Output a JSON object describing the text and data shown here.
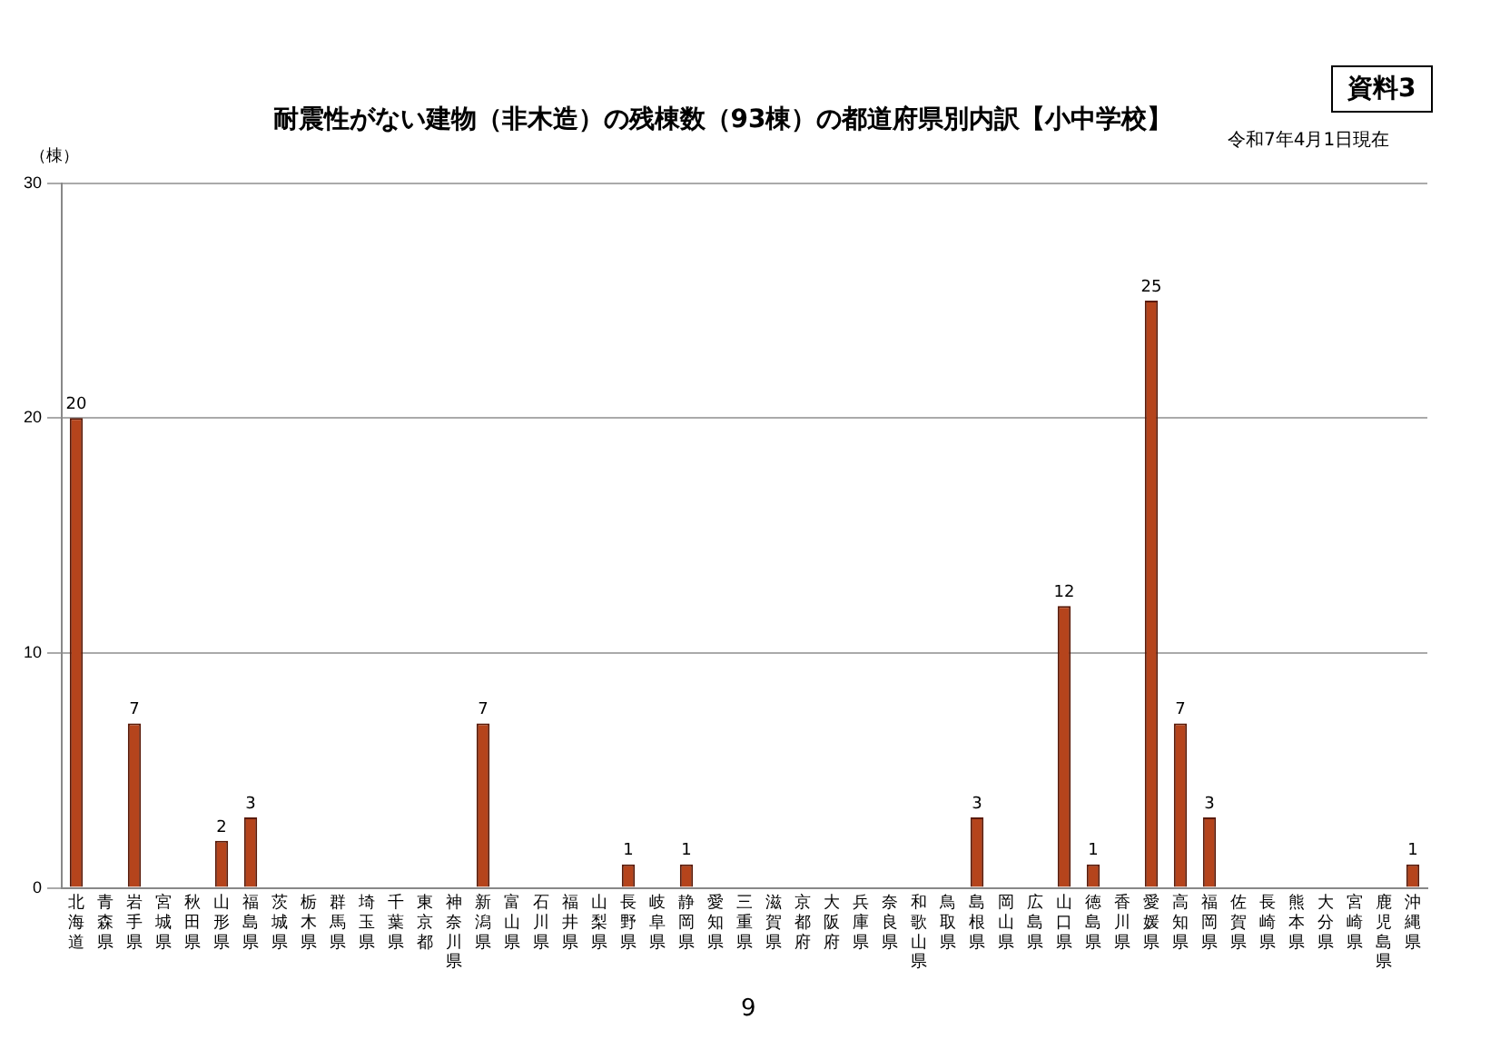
{
  "chart_data": {
    "type": "bar",
    "title": "耐震性がない建物（非木造）の残棟数（93棟）の都道府県別内訳【小中学校】",
    "ylabel": "（棟）",
    "annotations": [
      "資料3",
      "令和7年4月1日現在",
      "9"
    ],
    "categories": [
      "北海道",
      "青森県",
      "岩手県",
      "宮城県",
      "秋田県",
      "山形県",
      "福島県",
      "茨城県",
      "栃木県",
      "群馬県",
      "埼玉県",
      "千葉県",
      "東京都",
      "神奈川県",
      "新潟県",
      "富山県",
      "石川県",
      "福井県",
      "山梨県",
      "長野県",
      "岐阜県",
      "静岡県",
      "愛知県",
      "三重県",
      "滋賀県",
      "京都府",
      "大阪府",
      "兵庫県",
      "奈良県",
      "和歌山県",
      "鳥取県",
      "島根県",
      "岡山県",
      "広島県",
      "山口県",
      "徳島県",
      "香川県",
      "愛媛県",
      "高知県",
      "福岡県",
      "佐賀県",
      "長崎県",
      "熊本県",
      "大分県",
      "宮崎県",
      "鹿児島県",
      "沖縄県"
    ],
    "values": [
      20,
      0,
      7,
      0,
      0,
      2,
      3,
      0,
      0,
      0,
      0,
      0,
      0,
      0,
      7,
      0,
      0,
      0,
      0,
      1,
      0,
      1,
      0,
      0,
      0,
      0,
      0,
      0,
      0,
      0,
      0,
      3,
      0,
      0,
      12,
      1,
      0,
      25,
      7,
      3,
      0,
      0,
      0,
      0,
      0,
      0,
      1
    ],
    "value_labels": [
      "20",
      null,
      "7",
      null,
      null,
      "2",
      "3",
      null,
      null,
      null,
      null,
      null,
      null,
      null,
      "7",
      null,
      null,
      null,
      null,
      "1",
      null,
      "1",
      null,
      null,
      null,
      null,
      null,
      null,
      null,
      null,
      null,
      "3",
      null,
      null,
      "12",
      "1",
      null,
      "25",
      "7",
      "3",
      null,
      null,
      null,
      null,
      null,
      null,
      "1"
    ],
    "color": "#b5441c",
    "ylim": [
      0,
      30
    ],
    "yticks": [
      0,
      10,
      20,
      30
    ],
    "grid": "y"
  }
}
